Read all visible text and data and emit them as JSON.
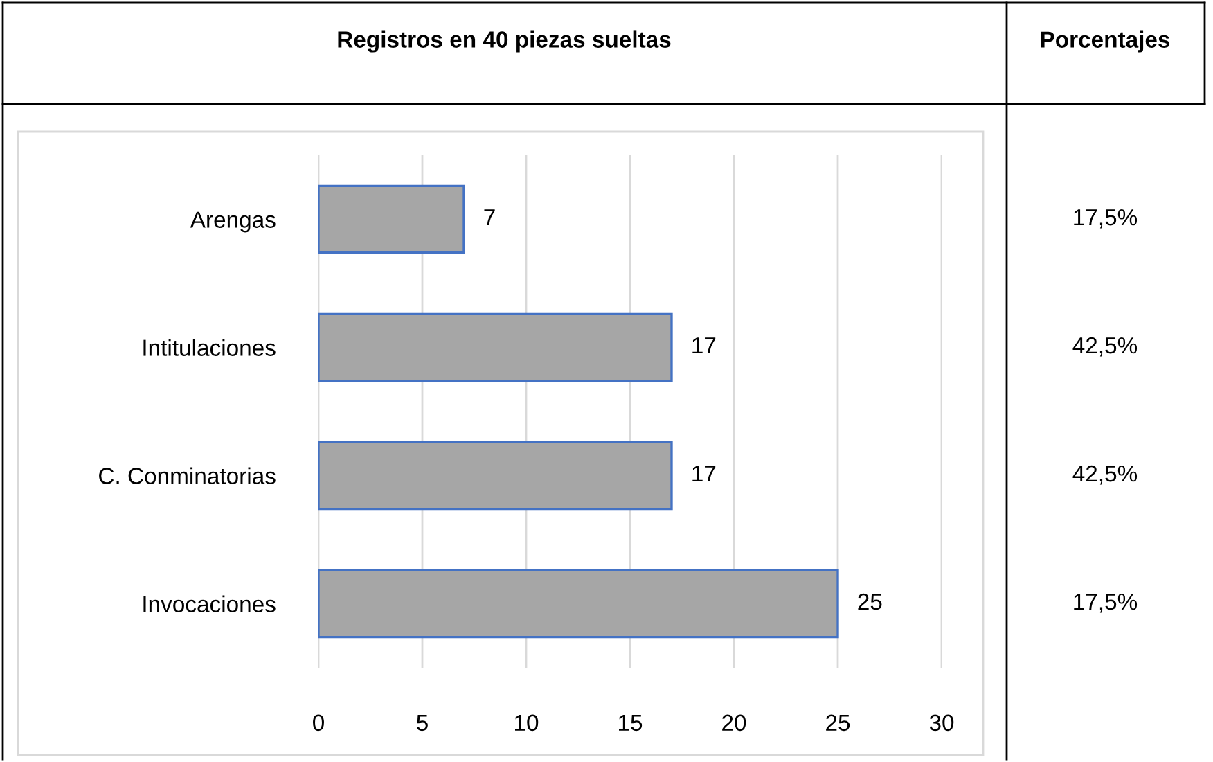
{
  "chart_data": {
    "type": "bar",
    "orientation": "horizontal",
    "title": "Registros en 40 piezas sueltas",
    "categories": [
      "Arengas",
      "Intitulaciones",
      "C. Conminatorias",
      "Invocaciones"
    ],
    "values": [
      7,
      17,
      17,
      25
    ],
    "color": "#a6a6a6",
    "xlim": [
      0,
      30
    ],
    "xticks": [
      0,
      5,
      10,
      15,
      20,
      25,
      30
    ],
    "grid": "x",
    "data_labels": true,
    "annotations": [
      "Porcentajes",
      "17,5%",
      "42,5%",
      "42,5%",
      "17,5%"
    ]
  }
}
